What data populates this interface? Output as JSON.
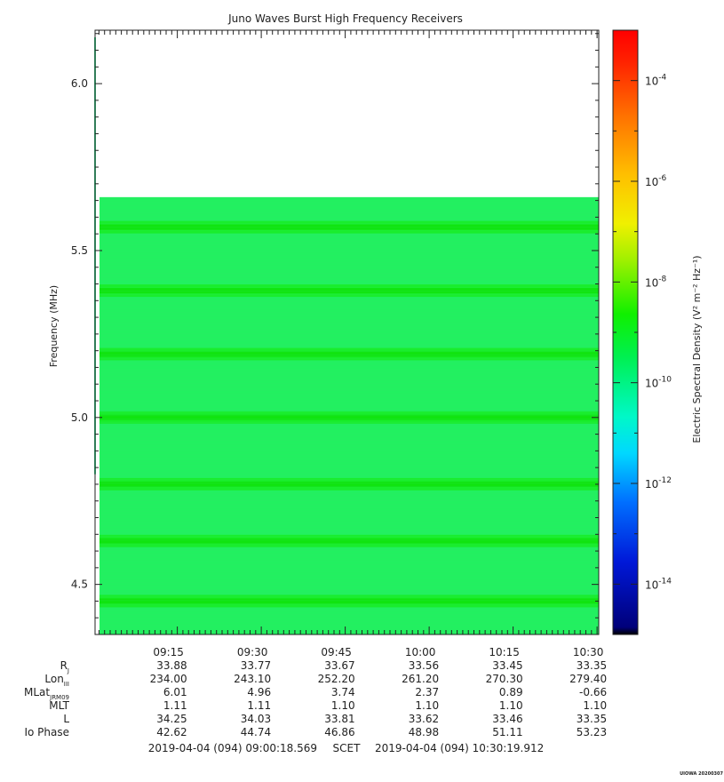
{
  "chart_data": {
    "type": "heatmap",
    "title": "Juno Waves Burst High Frequency Receivers",
    "ylabel": "Frequency (MHz)",
    "ylim": [
      4.35,
      6.16
    ],
    "yticks": [
      "6.0",
      "5.5",
      "5.0",
      "4.5"
    ],
    "yticks_values": [
      6.0,
      5.5,
      5.0,
      4.5
    ],
    "xlim_minutes": [
      540.3,
      630.3
    ],
    "xticks": [
      "09:15",
      "09:30",
      "09:45",
      "10:00",
      "10:15",
      "10:30"
    ],
    "xticks_minutes": [
      555,
      570,
      585,
      600,
      615,
      630
    ],
    "data_region": {
      "x_start_minutes": 541.1,
      "x_end_minutes": 630.3,
      "f_min": 4.35,
      "f_max": 5.66
    },
    "band_centers_mhz": [
      5.57,
      5.38,
      5.19,
      5.0,
      4.8,
      4.63,
      4.45
    ],
    "colorbar": {
      "label": "Electric Spectral Density (V² m⁻² Hz⁻¹)",
      "scale": "log",
      "range_exponent": [
        -15,
        -3
      ],
      "tick_labels": [
        "10",
        "10",
        "10",
        "10",
        "10",
        "10"
      ],
      "tick_exponents": [
        "-4",
        "-6",
        "-8",
        "-10",
        "-12",
        "-14"
      ],
      "tick_exponent_values": [
        -4,
        -6,
        -8,
        -10,
        -12,
        -14
      ]
    },
    "ephemeris": {
      "rows": [
        {
          "label": "R",
          "sub": "J",
          "values": [
            "33.88",
            "33.77",
            "33.67",
            "33.56",
            "33.45",
            "33.35"
          ]
        },
        {
          "label": "Lon",
          "sub": "III",
          "values": [
            "234.00",
            "243.10",
            "252.20",
            "261.20",
            "270.30",
            "279.40"
          ]
        },
        {
          "label": "MLat",
          "sub": "JRM09",
          "values": [
            "6.01",
            "4.96",
            "3.74",
            "2.37",
            "0.89",
            "-0.66"
          ]
        },
        {
          "label": "MLT",
          "sub": "",
          "values": [
            "1.11",
            "1.11",
            "1.10",
            "1.10",
            "1.10",
            "1.10"
          ]
        },
        {
          "label": "L",
          "sub": "",
          "values": [
            "34.25",
            "34.03",
            "33.81",
            "33.62",
            "33.46",
            "33.35"
          ]
        },
        {
          "label": "Io Phase",
          "sub": "",
          "values": [
            "42.62",
            "44.74",
            "46.86",
            "48.98",
            "51.11",
            "53.23"
          ]
        }
      ]
    },
    "time_range": {
      "start": "2019-04-04 (094) 09:00:18.569",
      "label": "SCET",
      "end": "2019-04-04 (094) 10:30:19.912"
    },
    "footer_note": "UIOWA 20200307"
  }
}
